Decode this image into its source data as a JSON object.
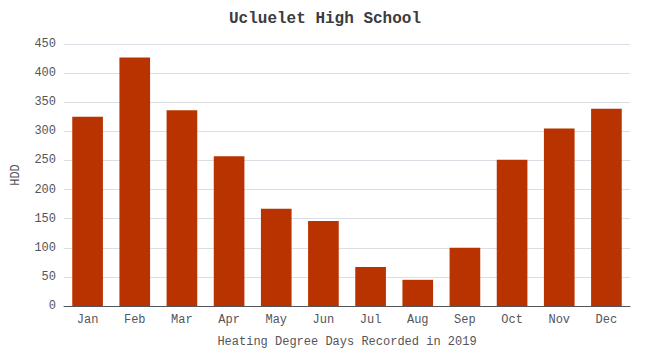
{
  "chart_data": {
    "type": "bar",
    "title": "Ucluelet High School",
    "xlabel": "Heating Degree Days Recorded in 2019",
    "ylabel": "HDD",
    "categories": [
      "Jan",
      "Feb",
      "Mar",
      "Apr",
      "May",
      "Jun",
      "Jul",
      "Aug",
      "Sep",
      "Oct",
      "Nov",
      "Dec"
    ],
    "values": [
      325,
      427,
      336,
      257,
      167,
      146,
      67,
      45,
      100,
      251,
      305,
      339
    ],
    "color": "#b83300",
    "ylim": [
      0,
      450
    ],
    "yticks": [
      0,
      50,
      100,
      150,
      200,
      250,
      300,
      350,
      400,
      450
    ],
    "grid": true
  }
}
